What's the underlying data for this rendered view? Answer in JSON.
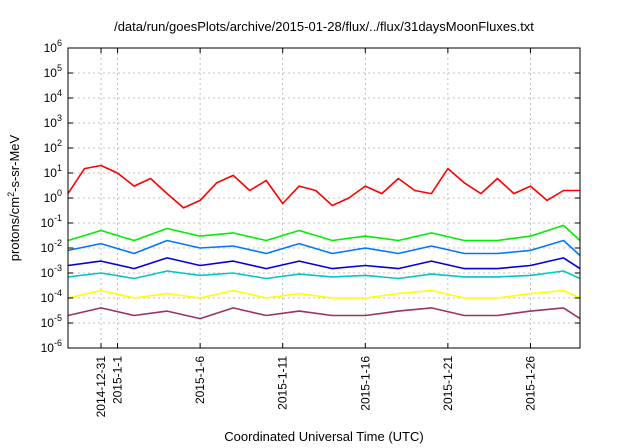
{
  "chart_data": {
    "type": "line",
    "title": "/data/run/goesPlots/archive/2015-01-28/flux/../flux/31daysMoonFluxes.txt",
    "xlabel": "Coordinated Universal Time (UTC)",
    "ylabel": "protons/cm²-s-sr-MeV",
    "yscale": "log",
    "ylim": [
      1e-06,
      1000000.0
    ],
    "xlim": [
      "2014-12-29",
      "2015-01-29"
    ],
    "grid": true,
    "y_ticks": [
      {
        "base": "10",
        "exp": "-6"
      },
      {
        "base": "10",
        "exp": "-5"
      },
      {
        "base": "10",
        "exp": "-4"
      },
      {
        "base": "10",
        "exp": "-3"
      },
      {
        "base": "10",
        "exp": "-2"
      },
      {
        "base": "10",
        "exp": "-1"
      },
      {
        "base": "10",
        "exp": "0"
      },
      {
        "base": "10",
        "exp": "1"
      },
      {
        "base": "10",
        "exp": "2"
      },
      {
        "base": "10",
        "exp": "3"
      },
      {
        "base": "10",
        "exp": "4"
      },
      {
        "base": "10",
        "exp": "5"
      },
      {
        "base": "10",
        "exp": "6"
      }
    ],
    "x_ticks": [
      "2014-12-31",
      "2015-1-1",
      "2015-1-6",
      "2015-1-11",
      "2015-1-16",
      "2015-1-21",
      "2015-1-26"
    ],
    "series": [
      {
        "color": "#ff0000",
        "x": [
          "2014-12-29",
          "2014-12-30",
          "2014-12-31",
          "2015-01-01",
          "2015-01-02",
          "2015-01-03",
          "2015-01-04",
          "2015-01-05",
          "2015-01-06",
          "2015-01-07",
          "2015-01-08",
          "2015-01-09",
          "2015-01-10",
          "2015-01-11",
          "2015-01-12",
          "2015-01-13",
          "2015-01-14",
          "2015-01-15",
          "2015-01-16",
          "2015-01-17",
          "2015-01-18",
          "2015-01-19",
          "2015-01-20",
          "2015-01-21",
          "2015-01-22",
          "2015-01-23",
          "2015-01-24",
          "2015-01-25",
          "2015-01-26",
          "2015-01-27",
          "2015-01-28",
          "2015-01-29"
        ],
        "values": [
          1.5,
          15,
          20,
          10,
          3,
          6,
          1.5,
          0.4,
          0.8,
          4,
          8,
          2,
          5,
          0.6,
          3,
          2,
          0.5,
          1,
          3,
          1.5,
          6,
          2,
          1.5,
          15,
          4,
          1.5,
          6,
          1.5,
          3,
          0.8,
          2,
          2
        ]
      },
      {
        "color": "#00ee00",
        "x": [
          "2014-12-29",
          "2014-12-31",
          "2015-01-02",
          "2015-01-04",
          "2015-01-06",
          "2015-01-08",
          "2015-01-10",
          "2015-01-12",
          "2015-01-14",
          "2015-01-16",
          "2015-01-18",
          "2015-01-20",
          "2015-01-22",
          "2015-01-24",
          "2015-01-26",
          "2015-01-28",
          "2015-01-29"
        ],
        "values": [
          0.02,
          0.05,
          0.02,
          0.06,
          0.03,
          0.04,
          0.02,
          0.05,
          0.02,
          0.03,
          0.02,
          0.04,
          0.02,
          0.02,
          0.03,
          0.08,
          0.02
        ]
      },
      {
        "color": "#0077ff",
        "x": [
          "2014-12-29",
          "2014-12-31",
          "2015-01-02",
          "2015-01-04",
          "2015-01-06",
          "2015-01-08",
          "2015-01-10",
          "2015-01-12",
          "2015-01-14",
          "2015-01-16",
          "2015-01-18",
          "2015-01-20",
          "2015-01-22",
          "2015-01-24",
          "2015-01-26",
          "2015-01-28",
          "2015-01-29"
        ],
        "values": [
          0.008,
          0.015,
          0.006,
          0.02,
          0.01,
          0.012,
          0.006,
          0.015,
          0.006,
          0.01,
          0.006,
          0.012,
          0.006,
          0.006,
          0.008,
          0.02,
          0.005
        ]
      },
      {
        "color": "#0000dd",
        "x": [
          "2014-12-29",
          "2014-12-31",
          "2015-01-02",
          "2015-01-04",
          "2015-01-06",
          "2015-01-08",
          "2015-01-10",
          "2015-01-12",
          "2015-01-14",
          "2015-01-16",
          "2015-01-18",
          "2015-01-20",
          "2015-01-22",
          "2015-01-24",
          "2015-01-26",
          "2015-01-28",
          "2015-01-29"
        ],
        "values": [
          0.002,
          0.003,
          0.0015,
          0.004,
          0.002,
          0.003,
          0.0015,
          0.003,
          0.0015,
          0.002,
          0.0015,
          0.003,
          0.0015,
          0.0015,
          0.002,
          0.004,
          0.0015
        ]
      },
      {
        "color": "#00c8c8",
        "x": [
          "2014-12-29",
          "2014-12-31",
          "2015-01-02",
          "2015-01-04",
          "2015-01-06",
          "2015-01-08",
          "2015-01-10",
          "2015-01-12",
          "2015-01-14",
          "2015-01-16",
          "2015-01-18",
          "2015-01-20",
          "2015-01-22",
          "2015-01-24",
          "2015-01-26",
          "2015-01-28",
          "2015-01-29"
        ],
        "values": [
          0.0007,
          0.001,
          0.0006,
          0.0012,
          0.0008,
          0.001,
          0.0006,
          0.0009,
          0.0007,
          0.0008,
          0.0006,
          0.0009,
          0.0007,
          0.0007,
          0.0008,
          0.0012,
          0.0006
        ]
      },
      {
        "color": "#ffff00",
        "x": [
          "2014-12-29",
          "2014-12-31",
          "2015-01-02",
          "2015-01-04",
          "2015-01-06",
          "2015-01-08",
          "2015-01-10",
          "2015-01-12",
          "2015-01-14",
          "2015-01-16",
          "2015-01-18",
          "2015-01-20",
          "2015-01-22",
          "2015-01-24",
          "2015-01-26",
          "2015-01-28",
          "2015-01-29"
        ],
        "values": [
          0.0001,
          0.0002,
          0.0001,
          0.00015,
          0.0001,
          0.0002,
          0.0001,
          0.00015,
          0.0001,
          0.0001,
          0.00015,
          0.0002,
          0.0001,
          0.0001,
          0.00015,
          0.0002,
          0.0001
        ]
      },
      {
        "color": "#993366",
        "x": [
          "2014-12-29",
          "2014-12-31",
          "2015-01-02",
          "2015-01-04",
          "2015-01-06",
          "2015-01-08",
          "2015-01-10",
          "2015-01-12",
          "2015-01-14",
          "2015-01-16",
          "2015-01-18",
          "2015-01-20",
          "2015-01-22",
          "2015-01-24",
          "2015-01-26",
          "2015-01-28",
          "2015-01-29"
        ],
        "values": [
          2e-05,
          4e-05,
          2e-05,
          3e-05,
          1.5e-05,
          4e-05,
          2e-05,
          3e-05,
          2e-05,
          2e-05,
          3e-05,
          4e-05,
          2e-05,
          2e-05,
          3e-05,
          4e-05,
          1.5e-05
        ]
      }
    ]
  }
}
